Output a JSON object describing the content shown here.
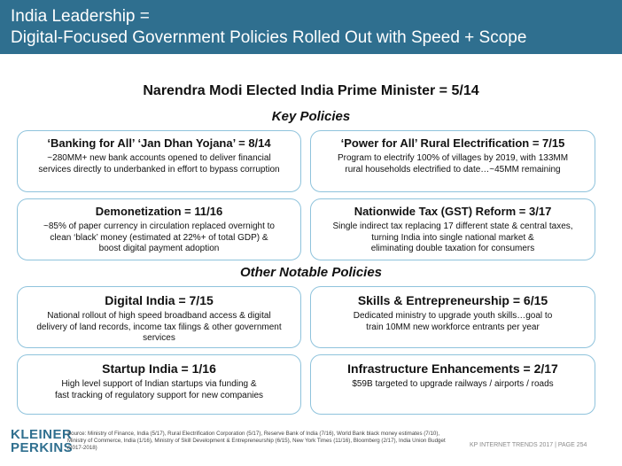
{
  "header": {
    "line1": "India Leadership =",
    "line2": "Digital-Focused Government Policies Rolled Out with Speed + Scope"
  },
  "main_title": "Narendra Modi Elected India Prime Minister = 5/14",
  "key_policies": {
    "title": "Key Policies",
    "cards": [
      {
        "title": "‘Banking for All’ ‘Jan Dhan Yojana’ = 8/14",
        "lines": [
          "~280MM+ new bank accounts opened to deliver financial",
          "services directly to underbanked in effort to bypass corruption"
        ]
      },
      {
        "title": "‘Power for All’ Rural Electrification = 7/15",
        "lines": [
          "Program to electrify 100% of villages by 2019, with 133MM",
          "rural households electrified to date…~45MM remaining"
        ]
      },
      {
        "title": "Demonetization = 11/16",
        "lines": [
          "~85% of paper currency in circulation replaced overnight to",
          "clean ‘black’ money (estimated at 22%+ of total GDP) &",
          "boost digital payment adoption"
        ]
      },
      {
        "title": "Nationwide Tax (GST) Reform = 3/17",
        "lines": [
          "Single indirect tax replacing 17 different state & central taxes,",
          "turning India into single national market &",
          "eliminating double taxation for consumers"
        ]
      }
    ]
  },
  "other_policies": {
    "title": "Other Notable Policies",
    "cards": [
      {
        "title": "Digital India = 7/15",
        "lines": [
          "National rollout of high speed broadband access & digital",
          "delivery of land records, income tax filings & other government",
          "services"
        ]
      },
      {
        "title": "Skills & Entrepreneurship = 6/15",
        "lines": [
          "Dedicated ministry to upgrade youth skills…goal to",
          "train 10MM new workforce entrants per year"
        ]
      },
      {
        "title": "Startup India = 1/16",
        "lines": [
          "High level support of Indian startups via funding &",
          "fast tracking of regulatory support for new companies"
        ]
      },
      {
        "title": "Infrastructure Enhancements = 2/17",
        "lines": [
          "$59B targeted to upgrade railways / airports / roads"
        ]
      }
    ]
  },
  "footer": {
    "logo_line1": "KLEINER",
    "logo_line2": "PERKINS",
    "source": "Source: Ministry of Finance, India (5/17), Rural Electrification Corporation (5/17), Reserve Bank of India (7/16), World Bank black money estimates (7/10), Ministry of Commerce, India (1/16), Ministry of Skill Development & Entrepreneurship (6/15), New York Times (11/16), Bloomberg (2/17), India Union Budget (2017-2018)",
    "page": "KP INTERNET TRENDS 2017  |  PAGE 254"
  },
  "colors": {
    "header_bg": "#2f6f8f",
    "card_border": "#8fc3dc",
    "logo": "#2f6f8f"
  }
}
